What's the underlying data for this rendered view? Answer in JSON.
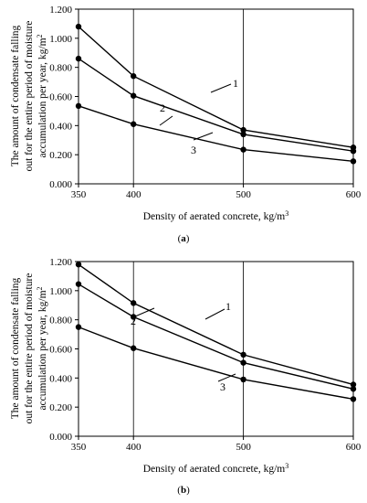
{
  "panels": [
    {
      "caption_letter": "a",
      "chart_data": {
        "type": "line",
        "x": [
          350,
          400,
          500,
          600
        ],
        "xlabel_prefix": "Density of aerated concrete, kg/m",
        "xlabel_sup": "3",
        "ylabel_line1": "The amount of condensate falling",
        "ylabel_line2": "out for the entire period of moisture",
        "ylabel_line3_prefix": "accumulation per year, kg/m",
        "ylabel_line3_sup": "2",
        "xlim": [
          350,
          600
        ],
        "ylim": [
          0,
          1.2
        ],
        "x_ticks": [
          "350",
          "400",
          "500",
          "600"
        ],
        "y_ticks": [
          "0.000",
          "0.200",
          "0.400",
          "0.600",
          "0.800",
          "1.000",
          "1.200"
        ],
        "grid": "vertical",
        "series": [
          {
            "name": "1",
            "values": [
              1.08,
              0.74,
              0.37,
              0.25
            ]
          },
          {
            "name": "2",
            "values": [
              0.86,
              0.605,
              0.34,
              0.225
            ]
          },
          {
            "name": "3",
            "values": [
              0.535,
              0.41,
              0.235,
              0.155
            ]
          }
        ],
        "line_color": "#000000"
      }
    },
    {
      "caption_letter": "b",
      "chart_data": {
        "type": "line",
        "x": [
          350,
          400,
          500,
          600
        ],
        "xlabel_prefix": "Density of aerated concrete, kg/m",
        "xlabel_sup": "3",
        "ylabel_line1": "The amount of condensate falling",
        "ylabel_line2": "out for the entire period of moisture",
        "ylabel_line3_prefix": "accumulation per year, kg/m",
        "ylabel_line3_sup": "2",
        "xlim": [
          350,
          600
        ],
        "ylim": [
          0,
          1.2
        ],
        "x_ticks": [
          "350",
          "400",
          "500",
          "600"
        ],
        "y_ticks": [
          "0.000",
          "0.200",
          "0.400",
          "0.600",
          "0.800",
          "1.000",
          "1.200"
        ],
        "grid": "vertical",
        "series": [
          {
            "name": "1",
            "values": [
              1.18,
              0.915,
              0.56,
              0.355
            ]
          },
          {
            "name": "2",
            "values": [
              1.045,
              0.82,
              0.505,
              0.325
            ]
          },
          {
            "name": "3",
            "values": [
              0.75,
              0.605,
              0.39,
              0.255
            ]
          }
        ],
        "line_color": "#000000"
      }
    }
  ]
}
